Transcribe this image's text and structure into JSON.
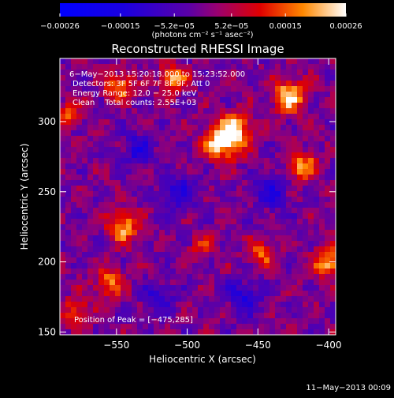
{
  "chart_data": {
    "type": "heatmap",
    "title": "Reconstructed RHESSI Image",
    "xlabel": "Heliocentric X (arcsec)",
    "ylabel": "Heliocentric Y (arcsec)",
    "xlim": [
      -590,
      -395
    ],
    "ylim": [
      148,
      345
    ],
    "x_ticks": [
      -550,
      -500,
      -450,
      -400
    ],
    "x_tick_labels": [
      "−550",
      "−500",
      "−450",
      "−400"
    ],
    "y_ticks": [
      150,
      200,
      250,
      300
    ],
    "y_tick_labels": [
      "150",
      "200",
      "250",
      "300"
    ],
    "colorbar": {
      "range": [
        -0.00026,
        0.00026
      ],
      "ticks": [
        -0.00026,
        -0.00015,
        -5.2e-05,
        5.2e-05,
        0.00015,
        0.00026
      ],
      "tick_labels": [
        "−0.00026",
        "−0.00015",
        "−5.2e−05",
        "5.2e−05",
        "0.00015",
        "0.00026"
      ],
      "units_label": "(photons cm⁻² s⁻¹ asec⁻²)"
    },
    "annotations": [
      "6−May−2013 15:20:18.000 to 15:23:52.000",
      "Detectors: 3F 5F 6F 7F 8F 9F, Att 0",
      "Energy Range: 12.0 − 25.0 keV",
      "Clean    Total counts: 2.55E+03"
    ],
    "peak_label": "Position of Peak = [−475,285]",
    "peak_position": [
      -475,
      285
    ],
    "sources": [
      {
        "x": -475,
        "y": 285,
        "amp": 0.00026,
        "w": 9
      },
      {
        "x": -465,
        "y": 295,
        "amp": 0.00018,
        "w": 8
      },
      {
        "x": -510,
        "y": 330,
        "amp": 0.0002,
        "w": 7
      },
      {
        "x": -548,
        "y": 325,
        "amp": 0.00018,
        "w": 7
      },
      {
        "x": -428,
        "y": 318,
        "amp": 0.00024,
        "w": 8
      },
      {
        "x": -418,
        "y": 268,
        "amp": 0.0002,
        "w": 7
      },
      {
        "x": -545,
        "y": 225,
        "amp": 0.0002,
        "w": 8
      },
      {
        "x": -400,
        "y": 200,
        "amp": 0.00022,
        "w": 7
      },
      {
        "x": -448,
        "y": 205,
        "amp": 0.00014,
        "w": 7
      },
      {
        "x": -555,
        "y": 185,
        "amp": 0.00018,
        "w": 7
      },
      {
        "x": -585,
        "y": 305,
        "amp": 0.00017,
        "w": 6
      },
      {
        "x": -578,
        "y": 165,
        "amp": 0.00014,
        "w": 7
      },
      {
        "x": -490,
        "y": 210,
        "amp": 0.0001,
        "w": 6
      },
      {
        "x": -505,
        "y": 250,
        "amp": -0.00012,
        "w": 9
      },
      {
        "x": -535,
        "y": 280,
        "amp": -0.00012,
        "w": 8
      },
      {
        "x": -460,
        "y": 175,
        "amp": -0.00014,
        "w": 8
      },
      {
        "x": -520,
        "y": 175,
        "amp": -0.0001,
        "w": 8
      },
      {
        "x": -440,
        "y": 250,
        "amp": -0.00012,
        "w": 9
      }
    ]
  },
  "footer_date": "11−May−2013 00:09"
}
